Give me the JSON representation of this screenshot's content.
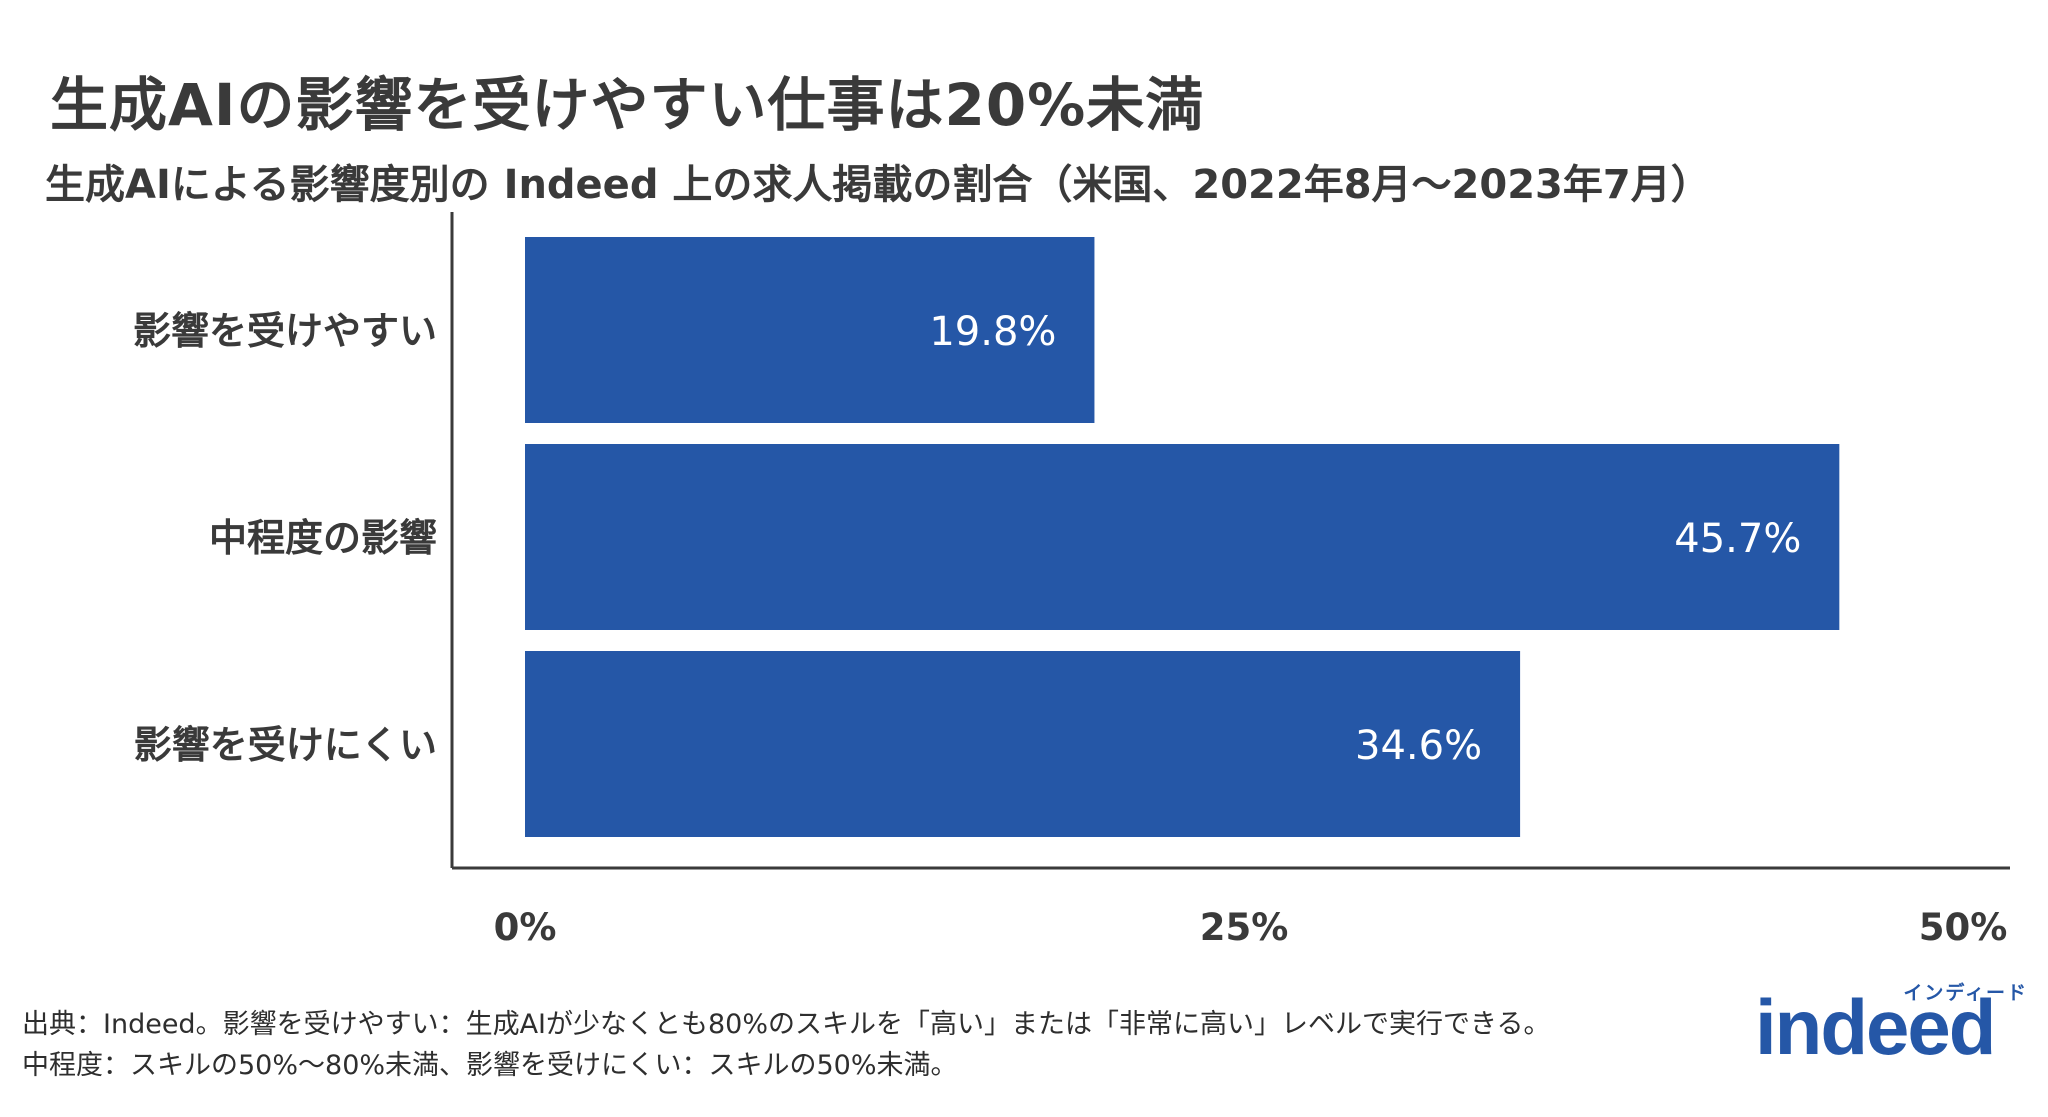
{
  "header": {
    "title": "生成AIの影響を受けやすい仕事は20%未満",
    "subtitle": "生成AIによる影響度別の Indeed 上の求人掲載の割合（米国、2022年8月～2023年7月）"
  },
  "chart_data": {
    "type": "bar",
    "orientation": "horizontal",
    "title": "生成AIの影響を受けやすい仕事は20%未満",
    "subtitle": "生成AIによる影響度別の Indeed 上の求人掲載の割合（米国、2022年8月～2023年7月）",
    "categories": [
      "影響を受けやすい",
      "中程度の影響",
      "影響を受けにくい"
    ],
    "values": [
      19.8,
      45.7,
      34.6
    ],
    "value_labels": [
      "19.8%",
      "45.7%",
      "34.6%"
    ],
    "xlim": [
      0,
      50
    ],
    "x_ticks": [
      0,
      25,
      50
    ],
    "x_tick_labels": [
      "0%",
      "25%",
      "50%"
    ],
    "xlabel": "",
    "ylabel": "",
    "grid": false,
    "bar_color": "#2557a7"
  },
  "footnotes": {
    "line1": "出典：Indeed。影響を受けやすい：生成AIが少なくとも80%のスキルを「高い」または「非常に高い」レベルで実行できる。",
    "line2": "中程度：スキルの50%～80%未満、影響を受けにくい：スキルの50%未満。"
  },
  "logo": {
    "kana": "インディード",
    "wordmark": "indeed",
    "color": "#2557a7"
  }
}
